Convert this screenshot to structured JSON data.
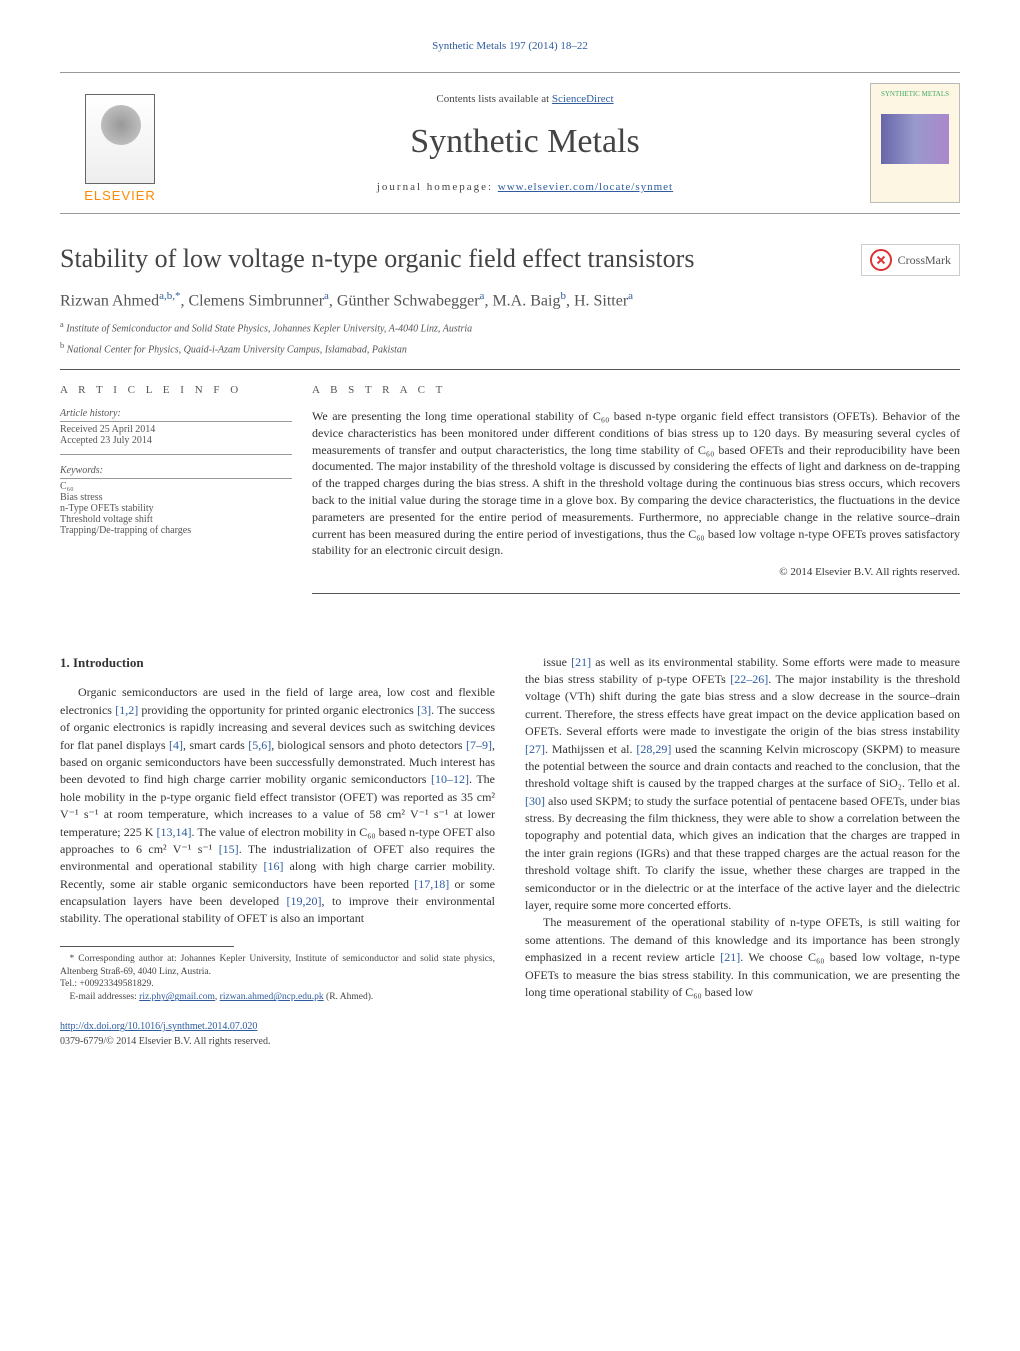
{
  "journal_ref": "Synthetic Metals 197 (2014) 18–22",
  "header": {
    "contents_prefix": "Contents lists available at ",
    "contents_link": "ScienceDirect",
    "journal_title": "Synthetic Metals",
    "homepage_prefix": "journal homepage: ",
    "homepage_url": "www.elsevier.com/locate/synmet",
    "publisher_name": "ELSEVIER",
    "cover_label": "SYNTHETIC METALS"
  },
  "crossmark_label": "CrossMark",
  "article": {
    "title": "Stability of low voltage n-type organic field effect transistors",
    "authors_html": "Rizwan Ahmed<sup>a,b,*</sup>, Clemens Simbrunner<sup>a</sup>, Günther Schwabegger<sup>a</sup>, M.A. Baig<sup>b</sup>, H. Sitter<sup>a</sup>",
    "affiliations": [
      "a Institute of Semiconductor and Solid State Physics, Johannes Kepler University, A-4040 Linz, Austria",
      "b National Center for Physics, Quaid-i-Azam University Campus, Islamabad, Pakistan"
    ]
  },
  "info": {
    "heading": "A R T I C L E   I N F O",
    "history_label": "Article history:",
    "received": "Received 25 April 2014",
    "accepted": "Accepted 23 July 2014",
    "keywords_label": "Keywords:",
    "keywords": [
      "C₆₀",
      "Bias stress",
      "n-Type OFETs stability",
      "Threshold voltage shift",
      "Trapping/De-trapping of charges"
    ]
  },
  "abstract": {
    "heading": "A B S T R A C T",
    "text": "We are presenting the long time operational stability of C₆₀ based n-type organic field effect transistors (OFETs). Behavior of the device characteristics has been monitored under different conditions of bias stress up to 120 days. By measuring several cycles of measurements of transfer and output characteristics, the long time stability of C₆₀ based OFETs and their reproducibility have been documented. The major instability of the threshold voltage is discussed by considering the effects of light and darkness on de-trapping of the trapped charges during the bias stress. A shift in the threshold voltage during the continuous bias stress occurs, which recovers back to the initial value during the storage time in a glove box. By comparing the device characteristics, the fluctuations in the device parameters are presented for the entire period of measurements. Furthermore, no appreciable change in the relative source–drain current has been measured during the entire period of investigations, thus the C₆₀ based low voltage n-type OFETs proves satisfactory stability for an electronic circuit design.",
    "copyright": "© 2014 Elsevier B.V. All rights reserved."
  },
  "body": {
    "section_heading": "1. Introduction",
    "col1_p1": "Organic semiconductors are used in the field of large area, low cost and flexible electronics [1,2] providing the opportunity for printed organic electronics [3]. The success of organic electronics is rapidly increasing and several devices such as switching devices for flat panel displays [4], smart cards [5,6], biological sensors and photo detectors [7–9], based on organic semiconductors have been successfully demonstrated. Much interest has been devoted to find high charge carrier mobility organic semiconductors [10–12]. The hole mobility in the p-type organic field effect transistor (OFET) was reported as 35 cm² V⁻¹ s⁻¹ at room temperature, which increases to a value of 58 cm² V⁻¹ s⁻¹ at lower temperature; 225 K [13,14]. The value of electron mobility in C₆₀ based n-type OFET also approaches to 6 cm² V⁻¹ s⁻¹ [15]. The industrialization of OFET also requires the environmental and operational stability [16] along with high charge carrier mobility. Recently, some air stable organic semiconductors have been reported [17,18] or some encapsulation layers have been developed [19,20], to improve their environmental stability. The operational stability of OFET is also an important",
    "col2_p1": "issue [21] as well as its environmental stability. Some efforts were made to measure the bias stress stability of p-type OFETs [22–26]. The major instability is the threshold voltage (VTh) shift during the gate bias stress and a slow decrease in the source–drain current. Therefore, the stress effects have great impact on the device application based on OFETs. Several efforts were made to investigate the origin of the bias stress instability [27]. Mathijssen et al. [28,29] used the scanning Kelvin microscopy (SKPM) to measure the potential between the source and drain contacts and reached to the conclusion, that the threshold voltage shift is caused by the trapped charges at the surface of SiO₂. Tello et al. [30] also used SKPM; to study the surface potential of pentacene based OFETs, under bias stress. By decreasing the film thickness, they were able to show a correlation between the topography and potential data, which gives an indication that the charges are trapped in the inter grain regions (IGRs) and that these trapped charges are the actual reason for the threshold voltage shift. To clarify the issue, whether these charges are trapped in the semiconductor or in the dielectric or at the interface of the active layer and the dielectric layer, require some more concerted efforts.",
    "col2_p2": "The measurement of the operational stability of n-type OFETs, is still waiting for some attentions. The demand of this knowledge and its importance has been strongly emphasized in a recent review article [21]. We choose C₆₀ based low voltage, n-type OFETs to measure the bias stress stability. In this communication, we are presenting the long time operational stability of C₆₀ based low"
  },
  "footnote": {
    "corr": "* Corresponding author at: Johannes Kepler University, Institute of semiconductor and solid state physics, Altenberg Straß-69, 4040 Linz, Austria.",
    "tel": "Tel.: +00923349581829.",
    "email_label": "E-mail addresses: ",
    "email1": "riz.phy@gmail.com",
    "email_sep": ", ",
    "email2": "rizwan.ahmed@ncp.edu.pk",
    "email_suffix": " (R. Ahmed)."
  },
  "doi": {
    "url": "http://dx.doi.org/10.1016/j.synthmet.2014.07.020",
    "issn_line": "0379-6779/© 2014 Elsevier B.V. All rights reserved."
  },
  "colors": {
    "link": "#2e5c9e",
    "text": "#333333",
    "heading": "#555555",
    "publisher_orange": "#ff8800",
    "border": "#999999"
  },
  "fonts": {
    "body_family": "Times New Roman, serif",
    "title_size_pt": 26,
    "journal_title_size_pt": 34,
    "body_size_pt": 12,
    "abstract_size_pt": 12,
    "info_size_pt": 10,
    "footnote_size_pt": 9.5
  }
}
